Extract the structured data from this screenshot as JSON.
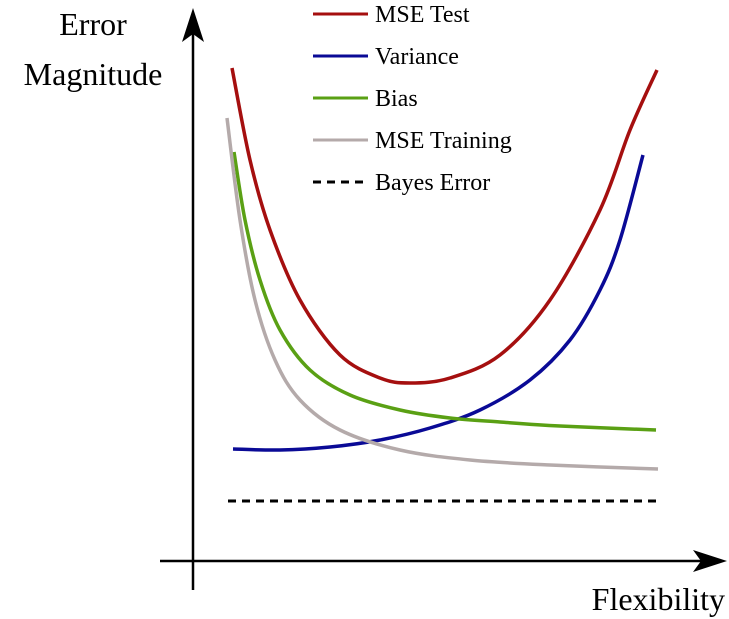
{
  "chart_data": {
    "type": "line",
    "ylabel": [
      "Error",
      "Magnitude"
    ],
    "xlabel": "Flexibility",
    "xlim": [
      0,
      10
    ],
    "ylim": [
      0,
      10
    ],
    "series": [
      {
        "name": "MSE Test",
        "color": "#a50f0f",
        "x": [
          0.78,
          1.14,
          1.54,
          2.14,
          2.94,
          3.74,
          4.34,
          5.14,
          6.14,
          7.14,
          8.14,
          8.74,
          9.28
        ],
        "values": [
          9.86,
          8.02,
          6.62,
          5.22,
          4.12,
          3.66,
          3.56,
          3.66,
          4.12,
          5.22,
          7.02,
          8.62,
          9.82
        ]
      },
      {
        "name": "Variance",
        "color": "#0a0a96",
        "x": [
          0.8,
          1.74,
          2.74,
          3.74,
          4.74,
          5.74,
          6.74,
          7.54,
          8.14,
          8.54,
          9.0
        ],
        "values": [
          2.24,
          2.22,
          2.28,
          2.42,
          2.66,
          3.02,
          3.62,
          4.42,
          5.42,
          6.42,
          8.12
        ]
      },
      {
        "name": "Bias",
        "color": "#5aa014",
        "x": [
          0.82,
          1.04,
          1.34,
          1.74,
          2.34,
          3.14,
          4.14,
          5.14,
          6.14,
          7.34,
          9.26
        ],
        "values": [
          8.18,
          6.82,
          5.62,
          4.62,
          3.82,
          3.32,
          3.02,
          2.86,
          2.78,
          2.7,
          2.62
        ]
      },
      {
        "name": "MSE Training",
        "color": "#b4aaaa",
        "x": [
          0.68,
          0.94,
          1.24,
          1.64,
          2.14,
          2.94,
          4.14,
          5.54,
          7.14,
          9.3
        ],
        "values": [
          8.86,
          6.82,
          5.22,
          4.02,
          3.22,
          2.62,
          2.22,
          2.02,
          1.92,
          1.84
        ]
      },
      {
        "name": "Bayes Error",
        "color": "#000000",
        "dashed": true,
        "x": [
          0.7,
          9.38
        ],
        "values": [
          1.2,
          1.2
        ]
      }
    ]
  }
}
